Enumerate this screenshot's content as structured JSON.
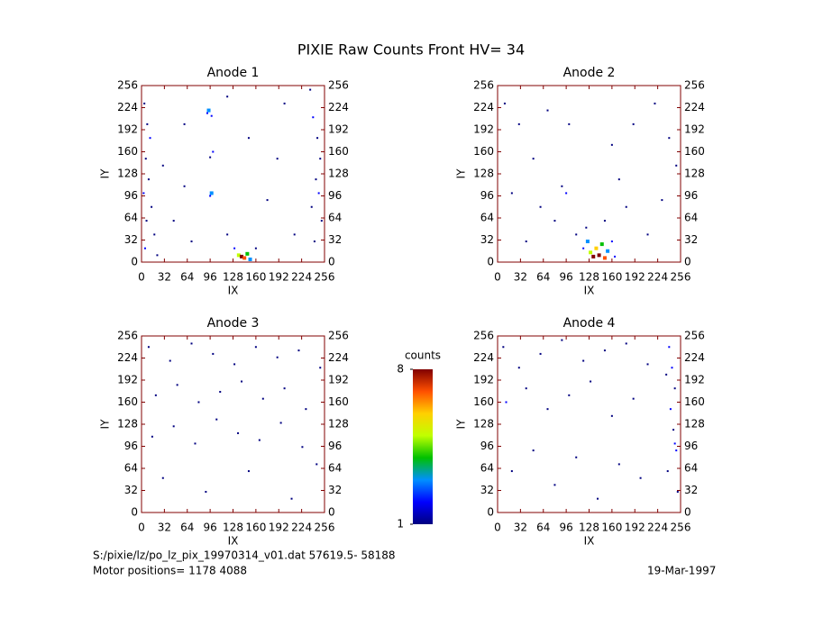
{
  "chart_data": {
    "type": "scatter",
    "title": "PIXIE Raw Counts Front HV= 34",
    "footer": [
      "S:/pixie/lz/po_lz_pix_19970314_v01.dat   57619.5- 58188",
      "Motor positions= 1178 4088"
    ],
    "date": "19-Mar-1997",
    "colorbar": {
      "label": "counts",
      "clim": [
        1,
        8
      ],
      "cticks": [
        1,
        8
      ],
      "colors": [
        "#000080",
        "#0000ff",
        "#0090ff",
        "#00c000",
        "#c0ff00",
        "#ffd000",
        "#ff5000",
        "#800000"
      ]
    },
    "panels": [
      {
        "title": "Anode 1",
        "xlabel": "IX",
        "ylabel": "IY",
        "xlim": [
          0,
          256
        ],
        "ylim": [
          0,
          256
        ],
        "xticks": [
          0,
          32,
          64,
          96,
          128,
          160,
          192,
          224,
          256
        ],
        "yticks": [
          0,
          32,
          64,
          96,
          128,
          160,
          192,
          224,
          256
        ],
        "x": [
          4,
          8,
          12,
          6,
          10,
          3,
          14,
          7,
          18,
          5,
          22,
          30,
          45,
          60,
          70,
          94,
          98,
          92,
          100,
          96,
          98,
          96,
          120,
          130,
          136,
          140,
          144,
          148,
          152,
          160,
          176,
          190,
          200,
          214,
          240,
          246,
          250,
          244,
          248,
          238,
          252,
          242,
          236,
          120,
          150,
          60
        ],
        "y": [
          230,
          200,
          180,
          150,
          120,
          100,
          80,
          60,
          40,
          20,
          10,
          140,
          60,
          200,
          30,
          220,
          212,
          216,
          160,
          152,
          100,
          96,
          40,
          20,
          10,
          8,
          6,
          12,
          4,
          20,
          90,
          150,
          230,
          40,
          210,
          180,
          150,
          120,
          100,
          80,
          60,
          30,
          250,
          240,
          180,
          110
        ],
        "counts": [
          1,
          1,
          2,
          1,
          1,
          2,
          1,
          1,
          1,
          2,
          1,
          1,
          1,
          1,
          1,
          3,
          2,
          2,
          2,
          1,
          3,
          2,
          1,
          2,
          5,
          8,
          7,
          4,
          3,
          1,
          1,
          1,
          1,
          1,
          2,
          1,
          1,
          1,
          2,
          1,
          1,
          1,
          1,
          1,
          1,
          1
        ]
      },
      {
        "title": "Anode 2",
        "xlabel": "IX",
        "ylabel": "IY",
        "xlim": [
          0,
          256
        ],
        "ylim": [
          0,
          256
        ],
        "xticks": [
          0,
          32,
          64,
          96,
          128,
          160,
          192,
          224,
          256
        ],
        "yticks": [
          0,
          32,
          64,
          96,
          128,
          160,
          192,
          224,
          256
        ],
        "x": [
          10,
          30,
          50,
          20,
          60,
          40,
          80,
          90,
          96,
          100,
          110,
          120,
          126,
          130,
          134,
          138,
          142,
          146,
          150,
          154,
          160,
          164,
          124,
          150,
          170,
          190,
          210,
          230,
          240,
          250,
          220,
          180,
          70,
          160
        ],
        "y": [
          230,
          200,
          150,
          100,
          80,
          30,
          60,
          110,
          100,
          200,
          40,
          20,
          30,
          14,
          8,
          20,
          10,
          26,
          6,
          16,
          30,
          8,
          50,
          60,
          120,
          200,
          40,
          90,
          180,
          140,
          230,
          80,
          220,
          170
        ],
        "counts": [
          1,
          1,
          1,
          1,
          1,
          1,
          1,
          1,
          2,
          1,
          1,
          2,
          3,
          5,
          8,
          6,
          8,
          4,
          7,
          3,
          2,
          2,
          1,
          1,
          1,
          1,
          1,
          1,
          1,
          1,
          1,
          1,
          1,
          1
        ]
      },
      {
        "title": "Anode 3",
        "xlabel": "IX",
        "ylabel": "IY",
        "xlim": [
          0,
          256
        ],
        "ylim": [
          0,
          256
        ],
        "xticks": [
          0,
          32,
          64,
          96,
          128,
          160,
          192,
          224,
          256
        ],
        "yticks": [
          0,
          32,
          64,
          96,
          128,
          160,
          192,
          224,
          256
        ],
        "x": [
          10,
          40,
          70,
          100,
          130,
          160,
          190,
          220,
          250,
          20,
          50,
          80,
          110,
          140,
          170,
          200,
          230,
          15,
          45,
          75,
          105,
          135,
          165,
          195,
          225,
          30,
          90,
          150,
          210,
          245
        ],
        "y": [
          240,
          220,
          245,
          230,
          215,
          240,
          225,
          235,
          210,
          170,
          185,
          160,
          175,
          190,
          165,
          180,
          150,
          110,
          125,
          100,
          135,
          115,
          105,
          130,
          95,
          50,
          30,
          60,
          20,
          70
        ],
        "counts": [
          1,
          1,
          1,
          1,
          1,
          1,
          1,
          1,
          1,
          1,
          1,
          1,
          1,
          1,
          1,
          1,
          1,
          1,
          1,
          1,
          1,
          1,
          1,
          1,
          1,
          1,
          1,
          1,
          1,
          1
        ]
      },
      {
        "title": "Anode 4",
        "xlabel": "IX",
        "ylabel": "IY",
        "xlim": [
          0,
          256
        ],
        "ylim": [
          0,
          256
        ],
        "xticks": [
          0,
          32,
          64,
          96,
          128,
          160,
          192,
          224,
          256
        ],
        "yticks": [
          0,
          32,
          64,
          96,
          128,
          160,
          192,
          224,
          256
        ],
        "x": [
          8,
          30,
          60,
          90,
          120,
          150,
          180,
          210,
          12,
          40,
          70,
          100,
          130,
          160,
          190,
          20,
          50,
          80,
          110,
          140,
          170,
          200,
          240,
          244,
          248,
          242,
          246,
          250,
          238,
          252,
          236,
          248
        ],
        "y": [
          240,
          210,
          230,
          250,
          220,
          235,
          245,
          215,
          160,
          180,
          150,
          170,
          190,
          140,
          165,
          60,
          90,
          40,
          80,
          20,
          70,
          50,
          240,
          210,
          180,
          150,
          120,
          90,
          60,
          30,
          200,
          100
        ],
        "counts": [
          1,
          1,
          1,
          1,
          1,
          1,
          1,
          1,
          2,
          1,
          1,
          1,
          1,
          1,
          1,
          1,
          1,
          1,
          1,
          1,
          1,
          1,
          2,
          2,
          1,
          2,
          1,
          2,
          1,
          1,
          1,
          2
        ]
      }
    ]
  }
}
